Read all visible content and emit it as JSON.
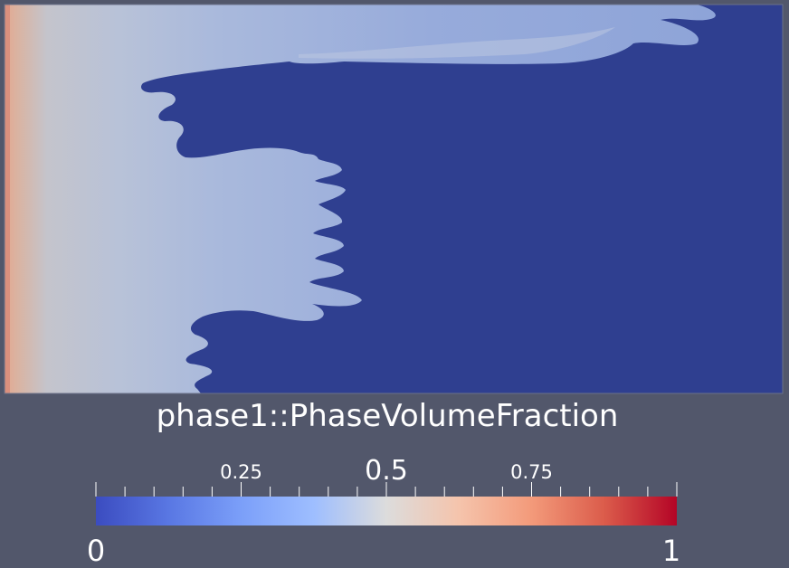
{
  "colorbar": {
    "title": "phase1::PhaseVolumeFraction",
    "min_label": "0",
    "max_label": "1",
    "ticks": [
      {
        "value": 0.25,
        "label": "0.25"
      },
      {
        "value": 0.5,
        "label": "0.5"
      },
      {
        "value": 0.75,
        "label": "0.75"
      }
    ],
    "range": [
      0,
      1
    ],
    "colormap": "Cool to Warm",
    "colors": {
      "low": "#3b4cc0",
      "mid": "#dddddd",
      "high": "#b40426"
    }
  },
  "scene": {
    "background_color": "#52576b",
    "domain_fill_color": "#2e3d8f",
    "fluid_color": "#aabbd8"
  }
}
